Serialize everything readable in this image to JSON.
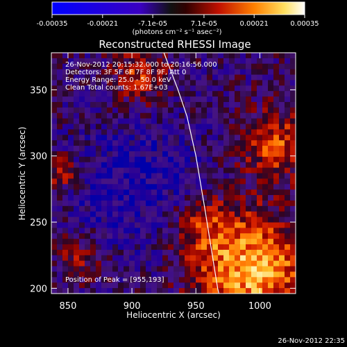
{
  "colorbar": {
    "tick_labels": [
      "-0.00035",
      "-0.00021",
      "-7.1e-05",
      "7.1e-05",
      "0.00021",
      "0.00035"
    ],
    "tick_values": [
      -0.00035,
      -0.00021,
      -7.1e-05,
      7.1e-05,
      0.00021,
      0.00035
    ],
    "range": [
      -0.00035,
      0.00035
    ],
    "units_label": "(photons cm⁻² s⁻¹ asec⁻²)"
  },
  "chart_data": {
    "type": "heatmap",
    "title": "Reconstructed RHESSI Image",
    "xlabel": "Heliocentric X (arcsec)",
    "ylabel": "Heliocentric Y (arcsec)",
    "xlim": [
      837,
      1028
    ],
    "ylim": [
      196,
      378
    ],
    "x_ticks": [
      850,
      900,
      950,
      1000
    ],
    "y_ticks": [
      200,
      250,
      300,
      350
    ],
    "x_tick_labels": [
      "850",
      "900",
      "950",
      "1000"
    ],
    "y_tick_labels": [
      "200",
      "250",
      "300",
      "350"
    ],
    "annotations": [
      "26-Nov-2012 20:15:32.000 to 20:16:56.000",
      "Detectors: 3F 5F 6F 7F 8F 9F, Att 0",
      "Energy Range: 25.0 - 50.0 keV",
      "Clean    Total counts: 1.67E+03"
    ],
    "peak_label": "Position of Peak = [955,193]",
    "peak_position": [
      955,
      193
    ],
    "limb_curve": [
      [
        925,
        378
      ],
      [
        936,
        350
      ],
      [
        943,
        330
      ],
      [
        950,
        300
      ],
      [
        957,
        260
      ],
      [
        962,
        230
      ],
      [
        967,
        200
      ],
      [
        968,
        196
      ]
    ]
  },
  "footer": {
    "timestamp": "26-Nov-2012 22:35"
  }
}
